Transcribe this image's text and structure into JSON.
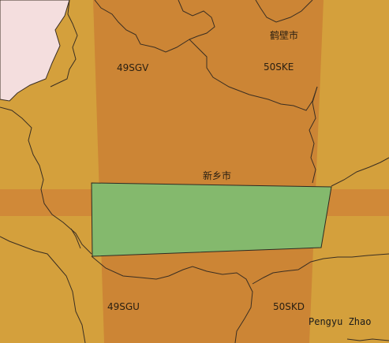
{
  "map": {
    "colors": {
      "background": "#d4a03c",
      "zone_band": "#d08938",
      "overlap": "#cc8535",
      "aoi_fill": "#84b96d",
      "neighbor_fill": "#f4dede",
      "border": "#3a2e22"
    },
    "tile_labels": {
      "nw": "49SGV",
      "ne": "50SKE",
      "sw": "49SGU",
      "se": "50SKD"
    },
    "city_labels": {
      "hebi": "鹤壁市",
      "xinxiang": "新乡市"
    },
    "credit": "Pengyu Zhao"
  }
}
